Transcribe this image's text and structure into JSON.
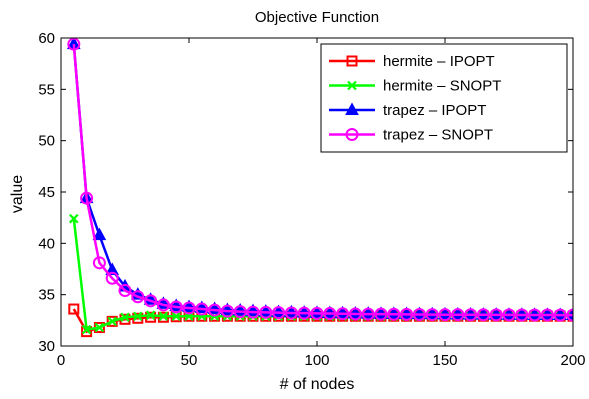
{
  "chart_data": {
    "type": "line",
    "title": "Objective Function",
    "xlabel": "# of nodes",
    "ylabel": "value",
    "xlim": [
      0,
      200
    ],
    "ylim": [
      30,
      60
    ],
    "xticks": [
      "0",
      "50",
      "100",
      "150",
      "200"
    ],
    "yticks": [
      "30",
      "35",
      "40",
      "45",
      "50",
      "55",
      "60"
    ],
    "grid": false,
    "legend_position": "top-right",
    "series": [
      {
        "name": "hermite – IPOPT",
        "color": "#ff0000",
        "marker": "square",
        "x": [
          5,
          10,
          15,
          20,
          25,
          30,
          35,
          40,
          45,
          50,
          55,
          60,
          65,
          70,
          75,
          80,
          85,
          90,
          95,
          100,
          105,
          110,
          115,
          120,
          125,
          130,
          135,
          140,
          145,
          150,
          155,
          160,
          165,
          170,
          175,
          180,
          185,
          190,
          195,
          200
        ],
        "y": [
          33.6,
          31.4,
          31.8,
          32.4,
          32.6,
          32.7,
          32.8,
          32.8,
          32.85,
          32.9,
          32.9,
          32.9,
          32.9,
          32.9,
          32.9,
          32.9,
          32.9,
          32.9,
          32.9,
          32.9,
          32.9,
          32.9,
          32.9,
          32.9,
          32.9,
          32.9,
          32.9,
          32.9,
          32.9,
          32.9,
          32.9,
          32.9,
          32.9,
          32.9,
          32.9,
          32.9,
          32.9,
          32.9,
          32.9,
          32.9
        ]
      },
      {
        "name": "hermite – SNOPT",
        "color": "#00ff00",
        "marker": "x",
        "x": [
          5,
          10,
          15,
          20,
          25,
          30,
          35,
          40,
          45,
          50,
          55,
          60,
          65,
          70,
          75,
          80,
          85,
          90,
          95,
          100,
          105,
          110,
          115,
          120,
          125,
          130,
          135,
          140,
          145,
          150,
          155,
          160,
          165,
          170,
          175,
          180,
          185,
          190,
          195,
          200
        ],
        "y": [
          42.4,
          31.6,
          31.8,
          32.4,
          32.8,
          32.9,
          33.0,
          32.9,
          32.9,
          32.9,
          32.9,
          32.9,
          32.9,
          32.9,
          32.9,
          32.9,
          32.9,
          32.9,
          32.9,
          32.9,
          32.9,
          32.9,
          32.9,
          32.9,
          32.9,
          32.9,
          32.9,
          32.9,
          32.9,
          32.9,
          32.9,
          32.9,
          32.9,
          32.9,
          32.9,
          32.9,
          32.9,
          32.9,
          32.9,
          32.9
        ]
      },
      {
        "name": "trapez – IPOPT",
        "color": "#0000ff",
        "marker": "triangle",
        "x": [
          5,
          10,
          15,
          20,
          25,
          30,
          35,
          40,
          45,
          50,
          55,
          60,
          65,
          70,
          75,
          80,
          85,
          90,
          95,
          100,
          105,
          110,
          115,
          120,
          125,
          130,
          135,
          140,
          145,
          150,
          155,
          160,
          165,
          170,
          175,
          180,
          185,
          190,
          195,
          200
        ],
        "y": [
          59.4,
          44.4,
          40.8,
          37.4,
          35.8,
          35.0,
          34.5,
          34.1,
          33.9,
          33.8,
          33.7,
          33.6,
          33.5,
          33.45,
          33.4,
          33.35,
          33.3,
          33.28,
          33.25,
          33.22,
          33.2,
          33.18,
          33.16,
          33.15,
          33.13,
          33.12,
          33.11,
          33.1,
          33.09,
          33.08,
          33.07,
          33.06,
          33.05,
          33.05,
          33.04,
          33.04,
          33.03,
          33.03,
          33.02,
          33.02
        ]
      },
      {
        "name": "trapez – SNOPT",
        "color": "#ff00ff",
        "marker": "circle",
        "x": [
          5,
          10,
          15,
          20,
          25,
          30,
          35,
          40,
          45,
          50,
          55,
          60,
          65,
          70,
          75,
          80,
          85,
          90,
          95,
          100,
          105,
          110,
          115,
          120,
          125,
          130,
          135,
          140,
          145,
          150,
          155,
          160,
          165,
          170,
          175,
          180,
          185,
          190,
          195,
          200
        ],
        "y": [
          59.4,
          44.4,
          38.1,
          36.6,
          35.4,
          34.8,
          34.4,
          34.0,
          33.8,
          33.7,
          33.6,
          33.5,
          33.4,
          33.35,
          33.3,
          33.28,
          33.25,
          33.22,
          33.2,
          33.18,
          33.16,
          33.14,
          33.12,
          33.11,
          33.1,
          33.09,
          33.08,
          33.07,
          33.06,
          33.05,
          33.05,
          33.04,
          33.04,
          33.03,
          33.03,
          33.02,
          33.02,
          33.02,
          33.01,
          33.01
        ]
      }
    ]
  }
}
